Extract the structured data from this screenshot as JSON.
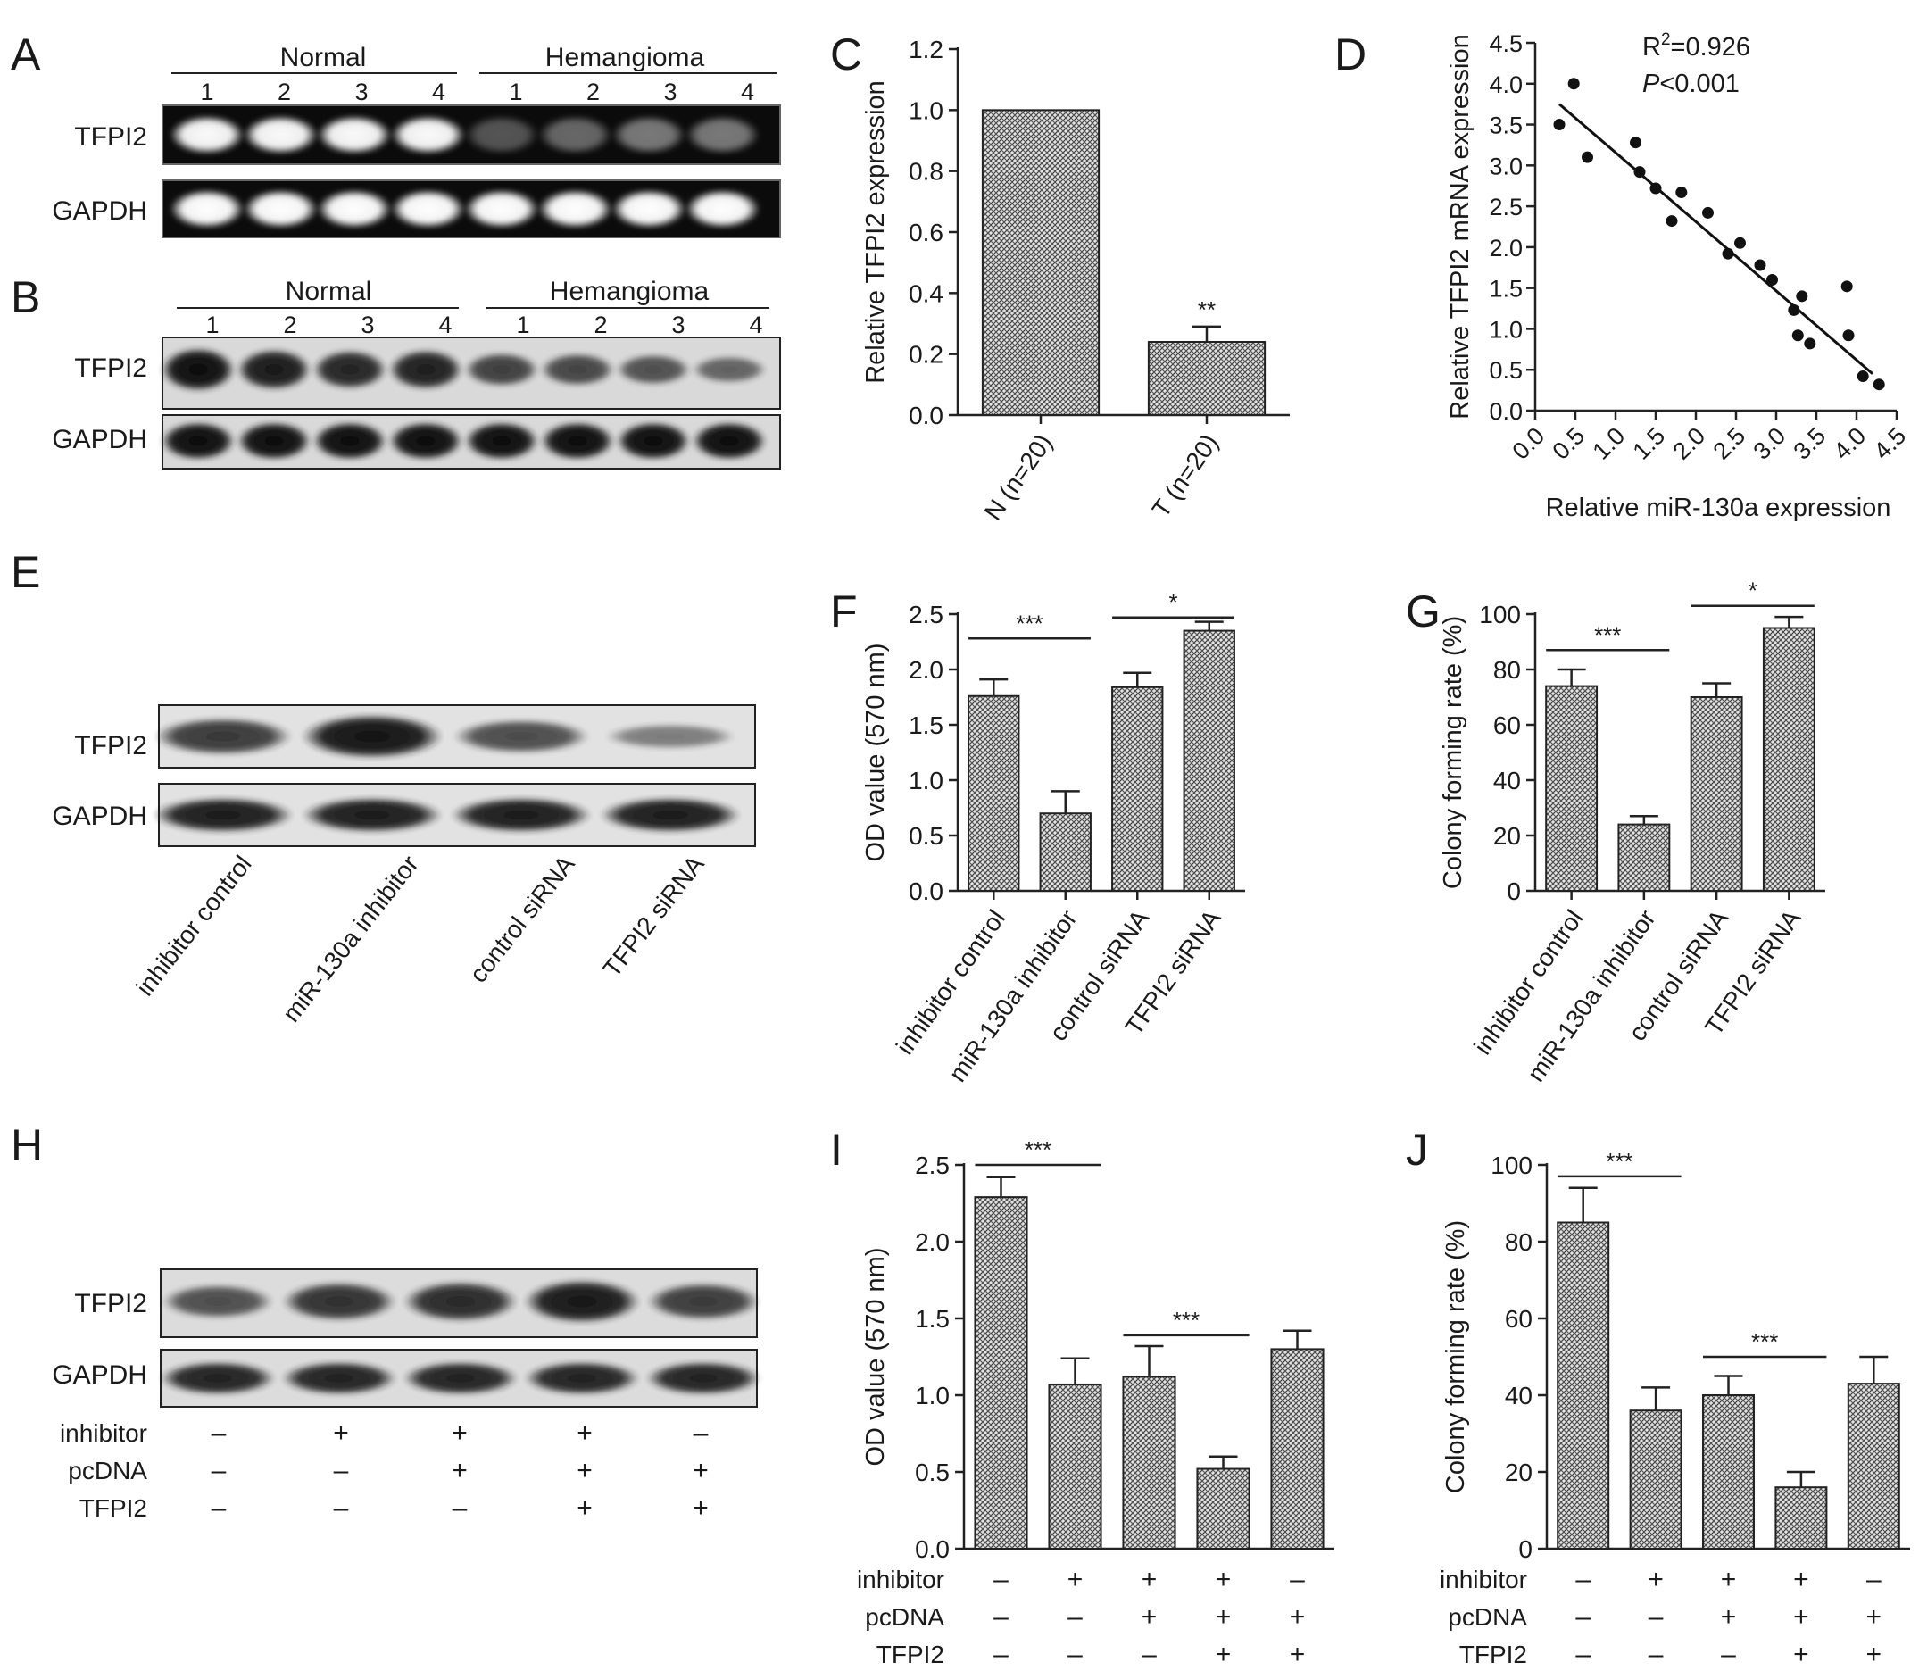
{
  "panels": {
    "A": {
      "letter": "A",
      "groups": [
        "Normal",
        "Hemangioma"
      ],
      "lanes": [
        "1",
        "2",
        "3",
        "4",
        "1",
        "2",
        "3",
        "4"
      ],
      "rows": [
        {
          "label": "TFPI2",
          "intensity": [
            0.98,
            0.98,
            0.98,
            0.98,
            0.3,
            0.38,
            0.45,
            0.45
          ]
        },
        {
          "label": "GAPDH",
          "intensity": [
            1,
            1,
            1,
            1,
            1,
            1,
            1,
            1
          ]
        }
      ]
    },
    "B": {
      "letter": "B",
      "groups": [
        "Normal",
        "Hemangioma"
      ],
      "lanes": [
        "1",
        "2",
        "3",
        "4",
        "1",
        "2",
        "3",
        "4"
      ],
      "rows": [
        {
          "label": "TFPI2",
          "intensity": [
            1,
            0.9,
            0.82,
            0.86,
            0.62,
            0.58,
            0.5,
            0.36
          ]
        },
        {
          "label": "GAPDH",
          "intensity": [
            1,
            1,
            1,
            1,
            1,
            1,
            1,
            1
          ]
        }
      ]
    },
    "E": {
      "letter": "E",
      "lanes": [
        "inhibitor control",
        "miR-130a inhibitor",
        "control siRNA",
        "TFPI2 siRNA"
      ],
      "rows": [
        {
          "label": "TFPI2",
          "intensity": [
            0.72,
            0.95,
            0.6,
            0.3
          ]
        },
        {
          "label": "GAPDH",
          "intensity": [
            0.9,
            0.9,
            0.9,
            0.9
          ]
        }
      ]
    },
    "H": {
      "letter": "H",
      "rows": [
        {
          "label": "TFPI2",
          "intensity": [
            0.55,
            0.75,
            0.8,
            0.92,
            0.68
          ]
        },
        {
          "label": "GAPDH",
          "intensity": [
            0.85,
            0.85,
            0.85,
            0.85,
            0.85
          ]
        }
      ],
      "treatments": [
        {
          "label": "inhibitor",
          "marks": [
            "–",
            "+",
            "+",
            "+",
            "–"
          ]
        },
        {
          "label": "pcDNA",
          "marks": [
            "–",
            "–",
            "+",
            "+",
            "+"
          ]
        },
        {
          "label": "TFPI2",
          "marks": [
            "–",
            "–",
            "–",
            "+",
            "+"
          ]
        }
      ]
    }
  },
  "chart_data": [
    {
      "panel": "C",
      "type": "bar",
      "categories": [
        "N (n=20)",
        "T (n=20)"
      ],
      "values": [
        1.0,
        0.24
      ],
      "errors": [
        0,
        0.05
      ],
      "ylabel": "Relative TFPI2 expression",
      "ylim": [
        0,
        1.2
      ],
      "yticks": [
        "0.0",
        "0.2",
        "0.4",
        "0.6",
        "0.8",
        "1.0",
        "1.2"
      ],
      "annotations": [
        {
          "text": "**",
          "bar": 1
        }
      ]
    },
    {
      "panel": "D",
      "type": "scatter",
      "xlabel": "Relative miR-130a expression",
      "ylabel": "Relative TFPI2 mRNA expression",
      "xlim": [
        0,
        4.5
      ],
      "ylim": [
        0,
        4.5
      ],
      "xticks": [
        "0.0",
        "0.5",
        "1.0",
        "1.5",
        "2.0",
        "2.5",
        "3.0",
        "3.5",
        "4.0",
        "4.5"
      ],
      "yticks": [
        "0.0",
        "0.5",
        "1.0",
        "1.5",
        "2.0",
        "2.5",
        "3.0",
        "3.5",
        "4.0",
        "4.5"
      ],
      "points": [
        [
          0.3,
          3.5
        ],
        [
          0.48,
          4.0
        ],
        [
          0.65,
          3.1
        ],
        [
          1.25,
          3.28
        ],
        [
          1.3,
          2.92
        ],
        [
          1.5,
          2.72
        ],
        [
          1.7,
          2.32
        ],
        [
          1.82,
          2.67
        ],
        [
          2.15,
          2.42
        ],
        [
          2.4,
          1.92
        ],
        [
          2.55,
          2.05
        ],
        [
          2.8,
          1.78
        ],
        [
          2.95,
          1.6
        ],
        [
          3.22,
          1.23
        ],
        [
          3.27,
          0.92
        ],
        [
          3.32,
          1.4
        ],
        [
          3.42,
          0.82
        ],
        [
          3.88,
          1.52
        ],
        [
          3.9,
          0.92
        ],
        [
          4.08,
          0.42
        ],
        [
          4.28,
          0.32
        ]
      ],
      "fit": {
        "x": [
          0.3,
          4.2
        ],
        "y": [
          3.75,
          0.45
        ]
      },
      "stats": {
        "r2_label": "R",
        "r2_sup": "2",
        "r2_value": "=0.926",
        "p_italic": "P",
        "p_value": "<0.001"
      }
    },
    {
      "panel": "F",
      "type": "bar",
      "categories": [
        "inhibitor control",
        "miR-130a inhibitor",
        "control siRNA",
        "TFPI2 siRNA"
      ],
      "values": [
        1.76,
        0.7,
        1.84,
        2.35
      ],
      "errors": [
        0.15,
        0.2,
        0.13,
        0.08
      ],
      "ylabel": "OD value (570 nm)",
      "ylim": [
        0,
        2.5
      ],
      "yticks": [
        "0.0",
        "0.5",
        "1.0",
        "1.5",
        "2.0",
        "2.5"
      ],
      "brackets": [
        {
          "from": 0,
          "to": 1,
          "y": 2.28,
          "text": "***"
        },
        {
          "from": 2,
          "to": 3,
          "y": 2.47,
          "text": "*"
        }
      ]
    },
    {
      "panel": "G",
      "type": "bar",
      "categories": [
        "inhibitor control",
        "miR-130a inhibitor",
        "control siRNA",
        "TFPI2 siRNA"
      ],
      "values": [
        74,
        24,
        70,
        95
      ],
      "errors": [
        6,
        3,
        5,
        4
      ],
      "ylabel": "Colony forming rate (%)",
      "ylim": [
        0,
        100
      ],
      "yticks": [
        "0",
        "20",
        "40",
        "60",
        "80",
        "100"
      ],
      "brackets": [
        {
          "from": 0,
          "to": 1,
          "y": 87,
          "text": "***"
        },
        {
          "from": 2,
          "to": 3,
          "y": 103,
          "text": "*"
        }
      ]
    },
    {
      "panel": "I",
      "type": "bar",
      "values": [
        2.29,
        1.07,
        1.12,
        0.52,
        1.3
      ],
      "errors": [
        0.13,
        0.17,
        0.2,
        0.08,
        0.12
      ],
      "ylabel": "OD value (570 nm)",
      "ylim": [
        0,
        2.5
      ],
      "yticks": [
        "0.0",
        "0.5",
        "1.0",
        "1.5",
        "2.0",
        "2.5"
      ],
      "brackets": [
        {
          "from": 0,
          "to": 1,
          "y": 2.5,
          "text": "***"
        },
        {
          "from": 2,
          "to": 3,
          "y": 1.39,
          "text": "***"
        }
      ],
      "treatments": [
        {
          "label": "inhibitor",
          "marks": [
            "–",
            "+",
            "+",
            "+",
            "–"
          ]
        },
        {
          "label": "pcDNA",
          "marks": [
            "–",
            "–",
            "+",
            "+",
            "+"
          ]
        },
        {
          "label": "TFPI2",
          "marks": [
            "–",
            "–",
            "–",
            "+",
            "+"
          ]
        }
      ]
    },
    {
      "panel": "J",
      "type": "bar",
      "values": [
        85,
        36,
        40,
        16,
        43
      ],
      "errors": [
        9,
        6,
        5,
        4,
        7
      ],
      "ylabel": "Colony forming rate (%)",
      "ylim": [
        0,
        100
      ],
      "yticks": [
        "0",
        "20",
        "40",
        "60",
        "80",
        "100"
      ],
      "brackets": [
        {
          "from": 0,
          "to": 1,
          "y": 97,
          "text": "***"
        },
        {
          "from": 2,
          "to": 3,
          "y": 50,
          "text": "***"
        }
      ],
      "treatments": [
        {
          "label": "inhibitor",
          "marks": [
            "–",
            "+",
            "+",
            "+",
            "–"
          ]
        },
        {
          "label": "pcDNA",
          "marks": [
            "–",
            "–",
            "+",
            "+",
            "+"
          ]
        },
        {
          "label": "TFPI2",
          "marks": [
            "–",
            "–",
            "–",
            "+",
            "+"
          ]
        }
      ]
    }
  ]
}
